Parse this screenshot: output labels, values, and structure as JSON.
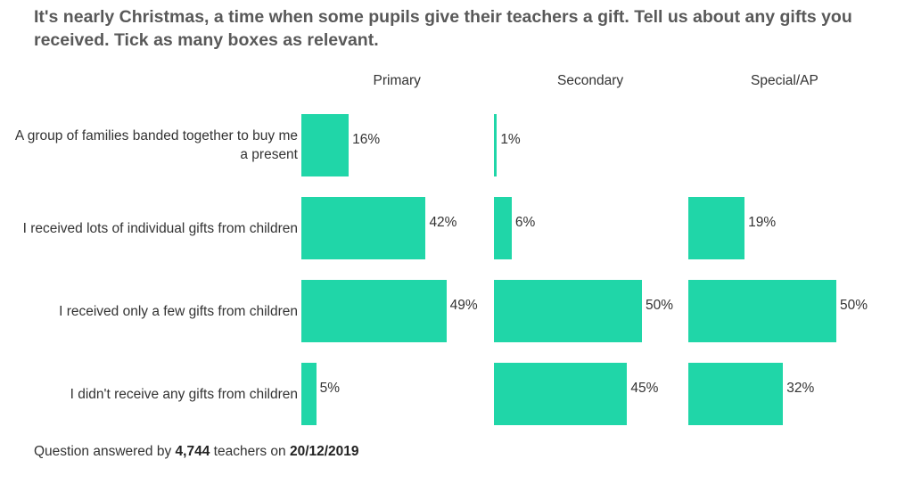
{
  "chart_data": {
    "type": "bar",
    "orientation": "horizontal",
    "title": "It's nearly Christmas, a time when some pupils give their teachers a gift. Tell us about any gifts you received. Tick as many boxes as relevant.",
    "categories": [
      "A group of families banded together to buy me a present",
      "I received lots of individual gifts from children",
      "I received only a few gifts from children",
      "I didn't receive any gifts from children"
    ],
    "series": [
      {
        "name": "Primary",
        "values": [
          16,
          42,
          49,
          5
        ],
        "labels": [
          "16%",
          "42%",
          "49%",
          "5%"
        ]
      },
      {
        "name": "Secondary",
        "values": [
          1,
          6,
          50,
          45
        ],
        "labels": [
          "1%",
          "6%",
          "50%",
          "45%"
        ]
      },
      {
        "name": "Special/AP",
        "values": [
          null,
          19,
          50,
          32
        ],
        "labels": [
          "",
          "19%",
          "50%",
          "32%"
        ]
      }
    ],
    "unit": "%",
    "bar_color": "#20d6a8",
    "grid": false,
    "legend": "none"
  },
  "footer": {
    "prefix": "Question answered by ",
    "count": "4,744",
    "middle": " teachers on ",
    "date": "20/12/2019"
  }
}
